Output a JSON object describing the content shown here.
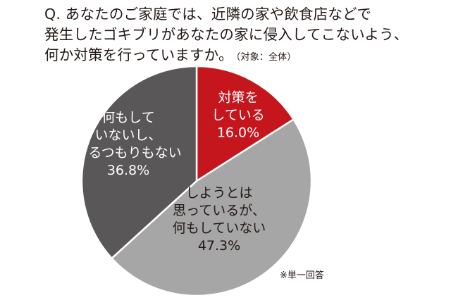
{
  "question": {
    "lines": [
      "Q. あなたのご家庭では、近隣の家や飲食店などで",
      "発生したゴキブリがあなたの家に侵入してこないよう、",
      "何か対策を行っていますか。"
    ],
    "target": "（対象：全体）"
  },
  "note": "※単一回答",
  "chart_data": {
    "type": "pie",
    "start_angle": "12 o'clock, clockwise",
    "slices": [
      {
        "label_lines": [
          "対策を",
          "している"
        ],
        "value": 16.0,
        "value_label": "16.0%",
        "color": "#c4161c",
        "text_color": "#ffffff"
      },
      {
        "label_lines": [
          "しようとは",
          "思っているが、",
          "何もしていない"
        ],
        "value": 47.3,
        "value_label": "47.3%",
        "color": "#a6a6a6",
        "text_color": "#231815"
      },
      {
        "label_lines": [
          "何もして",
          "いないし、",
          "するつもりもない"
        ],
        "value": 36.8,
        "value_label": "36.8%",
        "color": "#595757",
        "text_color": "#ffffff"
      }
    ]
  }
}
